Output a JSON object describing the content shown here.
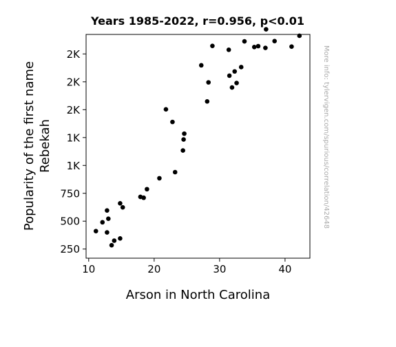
{
  "chart_data": {
    "type": "scatter",
    "title": "Years 1985-2022, r=0.956, p<0.01",
    "xlabel": "Arson in North Carolina",
    "ylabel_lines": [
      "Popularity of the first name",
      "Rebekah"
    ],
    "watermark": "More info: tylervigen.com/spurious/correlation/42648",
    "xlim": [
      9.6,
      43.8
    ],
    "ylim": [
      168,
      2175
    ],
    "x_ticks": [
      {
        "value": 10,
        "label": "10"
      },
      {
        "value": 20,
        "label": "20"
      },
      {
        "value": 30,
        "label": "30"
      },
      {
        "value": 40,
        "label": "40"
      }
    ],
    "y_ticks": [
      {
        "value": 250,
        "label": "250"
      },
      {
        "value": 500,
        "label": "500"
      },
      {
        "value": 750,
        "label": "750"
      },
      {
        "value": 1000,
        "label": "1K"
      },
      {
        "value": 1250,
        "label": "1K"
      },
      {
        "value": 1500,
        "label": "2K"
      },
      {
        "value": 1750,
        "label": "2K"
      },
      {
        "value": 2000,
        "label": "2K"
      },
      {
        "value": 2250,
        "label": "2K"
      }
    ],
    "points": [
      {
        "x": 11.1,
        "y": 411
      },
      {
        "x": 12.1,
        "y": 490
      },
      {
        "x": 12.8,
        "y": 596
      },
      {
        "x": 13.0,
        "y": 522
      },
      {
        "x": 12.8,
        "y": 399
      },
      {
        "x": 13.5,
        "y": 284
      },
      {
        "x": 13.9,
        "y": 325
      },
      {
        "x": 14.8,
        "y": 345
      },
      {
        "x": 14.8,
        "y": 660
      },
      {
        "x": 15.2,
        "y": 624
      },
      {
        "x": 17.9,
        "y": 718
      },
      {
        "x": 18.4,
        "y": 710
      },
      {
        "x": 18.9,
        "y": 787
      },
      {
        "x": 20.8,
        "y": 885
      },
      {
        "x": 21.8,
        "y": 1503
      },
      {
        "x": 22.8,
        "y": 1390
      },
      {
        "x": 23.2,
        "y": 940
      },
      {
        "x": 24.4,
        "y": 1134
      },
      {
        "x": 24.5,
        "y": 1233
      },
      {
        "x": 24.6,
        "y": 1285
      },
      {
        "x": 27.2,
        "y": 1898
      },
      {
        "x": 28.1,
        "y": 1574
      },
      {
        "x": 28.3,
        "y": 1745
      },
      {
        "x": 28.9,
        "y": 2072
      },
      {
        "x": 31.4,
        "y": 2037
      },
      {
        "x": 31.5,
        "y": 1805
      },
      {
        "x": 31.9,
        "y": 1699
      },
      {
        "x": 32.3,
        "y": 1843
      },
      {
        "x": 32.6,
        "y": 1739
      },
      {
        "x": 33.3,
        "y": 1882
      },
      {
        "x": 33.8,
        "y": 2113
      },
      {
        "x": 35.3,
        "y": 2062
      },
      {
        "x": 35.9,
        "y": 2070
      },
      {
        "x": 37.0,
        "y": 2054
      },
      {
        "x": 37.1,
        "y": 2221
      },
      {
        "x": 38.4,
        "y": 2115
      },
      {
        "x": 41.0,
        "y": 2066
      },
      {
        "x": 42.2,
        "y": 2163
      }
    ]
  }
}
